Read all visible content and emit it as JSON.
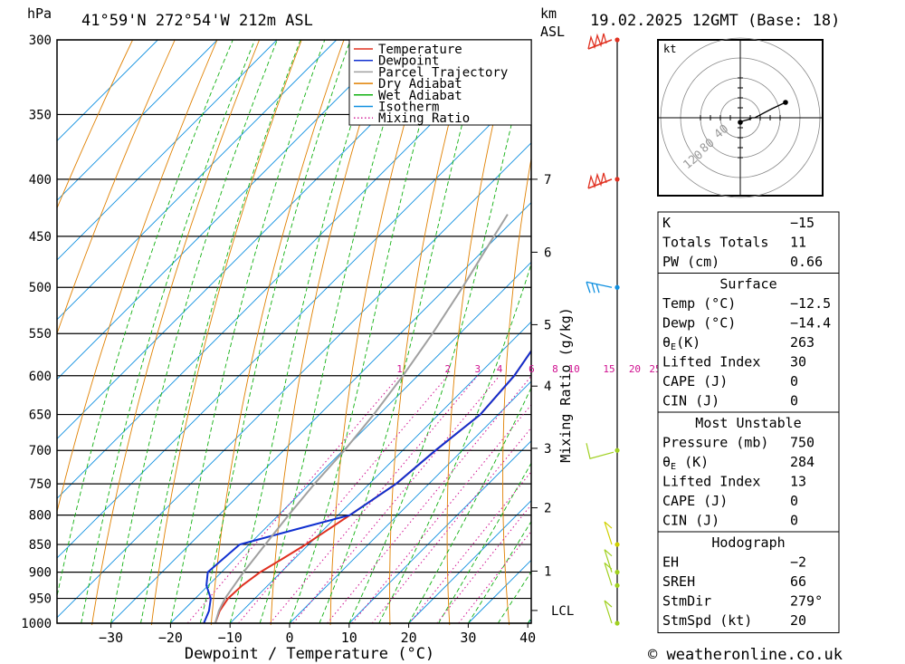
{
  "header": {
    "location": "41°59'N 272°54'W 212m ASL",
    "datetime": "19.02.2025 12GMT (Base: 18)",
    "pressure_unit": "hPa",
    "height_unit_1": "km",
    "height_unit_2": "ASL"
  },
  "chart_data": {
    "type": "line",
    "title": "",
    "xlabel": "Dewpoint / Temperature (°C)",
    "ylabel": "hPa",
    "mixing_ratio_label": "Mixing Ratio (g/kg)",
    "x_ticks": [
      -30,
      -20,
      -10,
      0,
      10,
      20,
      30,
      40
    ],
    "y_ticks": [
      300,
      350,
      400,
      450,
      500,
      550,
      600,
      650,
      700,
      750,
      800,
      850,
      900,
      950,
      1000
    ],
    "y_scale": "log",
    "height_ticks": [
      {
        "label": "7",
        "p": 400
      },
      {
        "label": "6",
        "p": 465
      },
      {
        "label": "5",
        "p": 540
      },
      {
        "label": "4",
        "p": 613
      },
      {
        "label": "3",
        "p": 697
      },
      {
        "label": "2",
        "p": 788
      },
      {
        "label": "1",
        "p": 898
      },
      {
        "label": "LCL",
        "p": 974
      }
    ],
    "mixing_ratio_values": [
      "1",
      "2",
      "3",
      "4",
      "6",
      "8",
      "10",
      "15",
      "20",
      "25"
    ],
    "legend": [
      {
        "name": "Temperature",
        "color": "#e03020",
        "style": "solid"
      },
      {
        "name": "Dewpoint",
        "color": "#1030d0",
        "style": "solid"
      },
      {
        "name": "Parcel Trajectory",
        "color": "#a0a0a0",
        "style": "solid"
      },
      {
        "name": "Dry Adiabat",
        "color": "#e08000",
        "style": "solid"
      },
      {
        "name": "Wet Adiabat",
        "color": "#10b010",
        "style": "solid"
      },
      {
        "name": "Isotherm",
        "color": "#1090e0",
        "style": "solid"
      },
      {
        "name": "Mixing Ratio",
        "color": "#d01090",
        "style": "dotted"
      }
    ],
    "series": [
      {
        "name": "Temperature",
        "color": "#e03020",
        "points": [
          [
            1000,
            -12.5
          ],
          [
            975,
            -13.8
          ],
          [
            950,
            -14.5
          ],
          [
            925,
            -14.3
          ],
          [
            900,
            -13.5
          ],
          [
            875,
            -12.0
          ],
          [
            850,
            -10.5
          ],
          [
            800,
            -8.0
          ],
          [
            750,
            -5.5
          ],
          [
            700,
            -4.5
          ],
          [
            650,
            -3.0
          ],
          [
            600,
            -3.8
          ],
          [
            550,
            -6.0
          ],
          [
            500,
            -8.6
          ],
          [
            450,
            -11.7
          ],
          [
            400,
            -14.8
          ],
          [
            350,
            -18.2
          ],
          [
            300,
            -21.9
          ]
        ]
      },
      {
        "name": "Dewpoint",
        "color": "#1030d0",
        "points": [
          [
            1000,
            -14.4
          ],
          [
            975,
            -15.6
          ],
          [
            950,
            -17.4
          ],
          [
            925,
            -20.3
          ],
          [
            900,
            -22.3
          ],
          [
            850,
            -21.6
          ],
          [
            825,
            -15.0
          ],
          [
            800,
            -8.0
          ],
          [
            750,
            -5.5
          ],
          [
            700,
            -4.5
          ],
          [
            650,
            -3.0
          ],
          [
            600,
            -3.8
          ],
          [
            550,
            -6.0
          ],
          [
            500,
            -8.6
          ],
          [
            450,
            -11.7
          ],
          [
            400,
            -14.8
          ],
          [
            350,
            -18.2
          ],
          [
            300,
            -21.9
          ]
        ]
      },
      {
        "name": "Parcel Trajectory",
        "color": "#a0a0a0",
        "points": [
          [
            1000,
            -12.5
          ],
          [
            974,
            -14.0
          ],
          [
            950,
            -15.0
          ],
          [
            900,
            -16.3
          ],
          [
            850,
            -17.3
          ],
          [
            800,
            -18.3
          ],
          [
            750,
            -19.2
          ],
          [
            700,
            -19.8
          ],
          [
            650,
            -20.9
          ],
          [
            600,
            -22.5
          ],
          [
            550,
            -24.6
          ],
          [
            500,
            -27.3
          ],
          [
            450,
            -30.6
          ],
          [
            430,
            -32.0
          ]
        ]
      }
    ],
    "wind_barbs": [
      {
        "p": 300,
        "color": "#e03020"
      },
      {
        "p": 400,
        "color": "#e03020"
      },
      {
        "p": 500,
        "color": "#1090e0"
      },
      {
        "p": 700,
        "color": "#a0d020"
      },
      {
        "p": 850,
        "color": "#d0d000"
      },
      {
        "p": 900,
        "color": "#a0d020"
      },
      {
        "p": 925,
        "color": "#a0d020"
      },
      {
        "p": 1000,
        "color": "#a0d020"
      }
    ]
  },
  "hodograph": {
    "unit": "kt",
    "ring_labels": [
      "40",
      "80",
      "120"
    ],
    "trace": [
      [
        0,
        0
      ],
      [
        2,
        -1
      ],
      [
        5,
        -2
      ],
      [
        9,
        -3
      ],
      [
        13,
        -5
      ],
      [
        16,
        -5
      ],
      [
        35,
        -15
      ],
      [
        50,
        -22
      ]
    ]
  },
  "indices": {
    "top": [
      {
        "label": "K",
        "value": "-15"
      },
      {
        "label": "Totals Totals",
        "value": "11"
      },
      {
        "label": "PW (cm)",
        "value": "0.66"
      }
    ],
    "surface": {
      "title": "Surface",
      "rows": [
        {
          "label": "Temp (°C)",
          "value": "-12.5"
        },
        {
          "label": "Dewp (°C)",
          "value": "-14.4"
        },
        {
          "label": "θE(K)",
          "value": "263"
        },
        {
          "label": "Lifted Index",
          "value": "30"
        },
        {
          "label": "CAPE (J)",
          "value": "0"
        },
        {
          "label": "CIN (J)",
          "value": "0"
        }
      ]
    },
    "most_unstable": {
      "title": "Most Unstable",
      "rows": [
        {
          "label": "Pressure (mb)",
          "value": "750"
        },
        {
          "label": "θE (K)",
          "value": "284"
        },
        {
          "label": "Lifted Index",
          "value": "13"
        },
        {
          "label": "CAPE (J)",
          "value": "0"
        },
        {
          "label": "CIN (J)",
          "value": "0"
        }
      ]
    },
    "hodograph_box": {
      "title": "Hodograph",
      "rows": [
        {
          "label": "EH",
          "value": "-2"
        },
        {
          "label": "SREH",
          "value": "66"
        },
        {
          "label": "StmDir",
          "value": "279°"
        },
        {
          "label": "StmSpd (kt)",
          "value": "20"
        }
      ]
    }
  },
  "footer": {
    "copyright": "© weatheronline.co.uk"
  }
}
